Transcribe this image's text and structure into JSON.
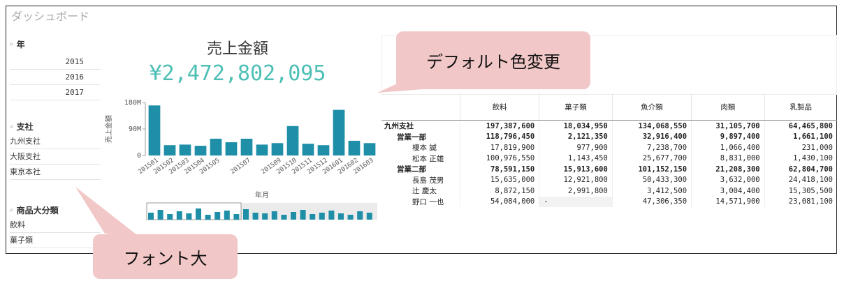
{
  "header": {
    "title": "ダッシュボード"
  },
  "filters": [
    {
      "title": "年",
      "items": [
        "2015",
        "2016",
        "2017"
      ]
    },
    {
      "title": "支社",
      "items": [
        "九州支社",
        "大阪支社",
        "東京本社"
      ]
    },
    {
      "title": "商品大分類",
      "items": [
        "飲料",
        "菓子類"
      ]
    }
  ],
  "kpi": {
    "label": "売上金額",
    "value": "¥2,472,802,095"
  },
  "chart_data": {
    "type": "bar",
    "y_label": "売上金額",
    "x_label": "年月",
    "color": "#1f8fa8",
    "categories": [
      "201501",
      "201502",
      "201503",
      "201504",
      "201505",
      null,
      "201507",
      null,
      "201509",
      "201510",
      "201511",
      "201512",
      "201601",
      "201602",
      "201603"
    ],
    "values": [
      170000000,
      35000000,
      37000000,
      33000000,
      57000000,
      45000000,
      57000000,
      37000000,
      42000000,
      100000000,
      40000000,
      35000000,
      155000000,
      50000000,
      42000000
    ],
    "ylim": [
      0,
      180000000
    ],
    "yticks": [
      0,
      {
        "value": 90000000,
        "label": "90M"
      },
      {
        "value": 180000000,
        "label": "180M"
      }
    ]
  },
  "table": {
    "columns": [
      "飲料",
      "菓子類",
      "魚介類",
      "肉類",
      "乳製品"
    ],
    "branch": {
      "name": "九州支社",
      "values": [
        "197,387,600",
        "18,034,950",
        "134,068,550",
        "31,105,700",
        "64,465,800"
      ],
      "departments": [
        {
          "name": "営業一部",
          "values": [
            "118,796,450",
            "2,121,350",
            "32,916,400",
            "9,897,400",
            "1,661,100"
          ],
          "members": [
            {
              "name": "榎本 誠",
              "values": [
                "17,819,900",
                "977,900",
                "7,238,700",
                "1,066,400",
                "231,000"
              ]
            },
            {
              "name": "松本 正雄",
              "values": [
                "100,976,550",
                "1,143,450",
                "25,677,700",
                "8,831,000",
                "1,430,100"
              ]
            }
          ]
        },
        {
          "name": "営業二部",
          "values": [
            "78,591,150",
            "15,913,600",
            "101,152,150",
            "21,208,300",
            "62,804,700"
          ],
          "members": [
            {
              "name": "長島 茂男",
              "values": [
                "15,635,000",
                "12,921,800",
                "50,433,300",
                "3,632,000",
                "24,418,100"
              ]
            },
            {
              "name": "辻 慶太",
              "values": [
                "8,872,150",
                "2,991,800",
                "3,412,500",
                "3,004,400",
                "15,305,500"
              ]
            },
            {
              "name": "野口 一也",
              "values": [
                "54,084,000",
                "-",
                "47,306,350",
                "14,571,900",
                "23,081,100"
              ]
            }
          ]
        }
      ]
    }
  },
  "callouts": [
    "デフォルト色変更",
    "フォント大"
  ]
}
